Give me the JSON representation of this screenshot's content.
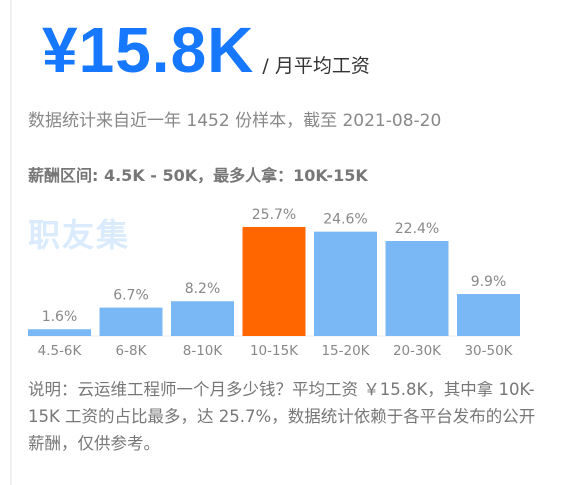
{
  "header": {
    "salary": "¥15.8K",
    "salary_unit": "/ 月平均工资",
    "subtitle": "数据统计来自近一年 1452 份样本，截至 2021-08-20",
    "range": "薪酬区间: 4.5K - 50K，最多人拿：10K-15K",
    "watermark": "职友集"
  },
  "note": "说明：云运维工程师一个月多少钱？平均工资 ￥15.8K，其中拿 10K-15K 工资的占比最多，达 25.7%，数据统计依赖于各平台发布的公开薪酬，仅供参考。",
  "colors": {
    "bar": "#7ab8f5",
    "highlight": "#ff6600",
    "accent": "#1677ff"
  },
  "chart_data": {
    "type": "bar",
    "categories": [
      "4.5-6K",
      "6-8K",
      "8-10K",
      "10-15K",
      "15-20K",
      "20-30K",
      "30-50K"
    ],
    "values": [
      1.6,
      6.7,
      8.2,
      25.7,
      24.6,
      22.4,
      9.9
    ],
    "value_labels": [
      "1.6%",
      "6.7%",
      "8.2%",
      "25.7%",
      "24.6%",
      "22.4%",
      "9.9%"
    ],
    "highlight_index": 3,
    "ylim": [
      0,
      25.7
    ],
    "grid": false,
    "legend": "none"
  }
}
